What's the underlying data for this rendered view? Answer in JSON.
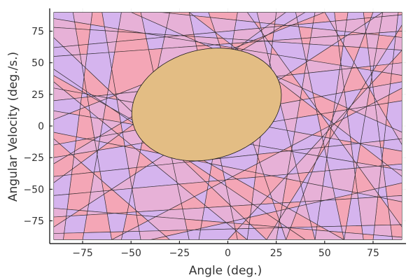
{
  "chart_data": {
    "type": "other",
    "description_type": "polygon-tiling",
    "xlabel": "Angle (deg.)",
    "ylabel": "Angular Velocity (deg./s.)",
    "xlim": [
      -92,
      92
    ],
    "ylim": [
      -93,
      93
    ],
    "x_ticks": [
      -75,
      -50,
      -25,
      0,
      25,
      50,
      75
    ],
    "y_ticks": [
      -75,
      -50,
      -25,
      0,
      25,
      50,
      75
    ],
    "x_tick_labels": [
      "−75",
      "−50",
      "−25",
      "0",
      "25",
      "50",
      "75"
    ],
    "y_tick_labels": [
      "−75",
      "−50",
      "−25",
      "0",
      "25",
      "50",
      "75"
    ],
    "grid": true,
    "region_x_range": [
      -90,
      90
    ],
    "region_y_range": [
      -90,
      90
    ],
    "central_region": {
      "shape": "ellipse",
      "center": [
        -11,
        17
      ],
      "semi_axes": [
        46,
        37
      ],
      "rotation_deg": 66,
      "color": "#e3bd84"
    },
    "palette": [
      "#f4a6b6",
      "#7ecfd0",
      "#d5b4ee",
      "#c5c58d",
      "#86c7f2",
      "#e7b1d7",
      "#9bd3a2",
      "#e4b883"
    ],
    "partition_lines": [
      [
        [
          -90,
          78
        ],
        [
          90,
          60
        ]
      ],
      [
        [
          -90,
          62
        ],
        [
          90,
          88
        ]
      ],
      [
        [
          -90,
          45
        ],
        [
          40,
          -90
        ]
      ],
      [
        [
          -90,
          30
        ],
        [
          90,
          -20
        ]
      ],
      [
        [
          -90,
          12
        ],
        [
          90,
          -35
        ]
      ],
      [
        [
          -90,
          -5
        ],
        [
          90,
          -60
        ]
      ],
      [
        [
          -90,
          -25
        ],
        [
          90,
          20
        ]
      ],
      [
        [
          -90,
          -40
        ],
        [
          90,
          -10
        ]
      ],
      [
        [
          -90,
          -55
        ],
        [
          90,
          -30
        ]
      ],
      [
        [
          -90,
          -72
        ],
        [
          90,
          -55
        ]
      ],
      [
        [
          -90,
          -85
        ],
        [
          90,
          -78
        ]
      ],
      [
        [
          -90,
          85
        ],
        [
          90,
          40
        ]
      ],
      [
        [
          -90,
          55
        ],
        [
          90,
          75
        ]
      ],
      [
        [
          -90,
          20
        ],
        [
          90,
          50
        ]
      ],
      [
        [
          -90,
          -15
        ],
        [
          90,
          35
        ]
      ],
      [
        [
          -90,
          -65
        ],
        [
          90,
          -88
        ]
      ],
      [
        [
          -80,
          90
        ],
        [
          -60,
          -90
        ]
      ],
      [
        [
          -70,
          90
        ],
        [
          -85,
          -90
        ]
      ],
      [
        [
          -65,
          90
        ],
        [
          -45,
          -90
        ]
      ],
      [
        [
          -55,
          90
        ],
        [
          -75,
          -90
        ]
      ],
      [
        [
          -45,
          90
        ],
        [
          -20,
          -90
        ]
      ],
      [
        [
          -30,
          90
        ],
        [
          -55,
          -90
        ]
      ],
      [
        [
          -20,
          90
        ],
        [
          5,
          -90
        ]
      ],
      [
        [
          -10,
          90
        ],
        [
          30,
          -90
        ]
      ],
      [
        [
          5,
          90
        ],
        [
          -15,
          -90
        ]
      ],
      [
        [
          15,
          90
        ],
        [
          45,
          -90
        ]
      ],
      [
        [
          25,
          90
        ],
        [
          10,
          -90
        ]
      ],
      [
        [
          35,
          90
        ],
        [
          60,
          -90
        ]
      ],
      [
        [
          45,
          90
        ],
        [
          25,
          -90
        ]
      ],
      [
        [
          55,
          90
        ],
        [
          70,
          -90
        ]
      ],
      [
        [
          62,
          90
        ],
        [
          45,
          -90
        ]
      ],
      [
        [
          70,
          90
        ],
        [
          85,
          -90
        ]
      ],
      [
        [
          80,
          90
        ],
        [
          60,
          -90
        ]
      ],
      [
        [
          88,
          90
        ],
        [
          75,
          -90
        ]
      ],
      [
        [
          -90,
          70
        ],
        [
          20,
          -90
        ]
      ],
      [
        [
          -20,
          90
        ],
        [
          90,
          -40
        ]
      ],
      [
        [
          -90,
          -30
        ],
        [
          40,
          90
        ]
      ],
      [
        [
          0,
          -90
        ],
        [
          90,
          60
        ]
      ],
      [
        [
          -60,
          -90
        ],
        [
          90,
          30
        ]
      ],
      [
        [
          -90,
          40
        ],
        [
          60,
          -90
        ]
      ],
      [
        [
          10,
          90
        ],
        [
          90,
          -80
        ]
      ],
      [
        [
          -90,
          -80
        ],
        [
          80,
          90
        ]
      ],
      [
        [
          -50,
          90
        ],
        [
          90,
          -5
        ]
      ],
      [
        [
          -90,
          5
        ],
        [
          50,
          90
        ]
      ],
      [
        [
          20,
          -90
        ],
        [
          90,
          80
        ]
      ],
      [
        [
          -40,
          -90
        ],
        [
          90,
          -45
        ]
      ],
      [
        [
          -90,
          -45
        ],
        [
          30,
          90
        ]
      ],
      [
        [
          -35,
          90
        ],
        [
          90,
          70
        ]
      ],
      [
        [
          -90,
          35
        ],
        [
          10,
          -90
        ]
      ],
      [
        [
          50,
          90
        ],
        [
          90,
          -15
        ]
      ],
      [
        [
          -90,
          -10
        ],
        [
          -30,
          -90
        ]
      ],
      [
        [
          75,
          90
        ],
        [
          30,
          -90
        ]
      ]
    ]
  }
}
